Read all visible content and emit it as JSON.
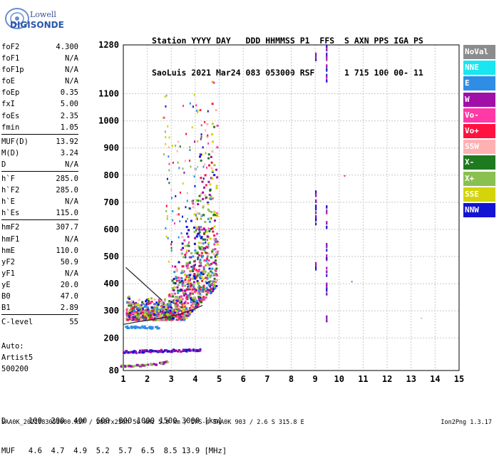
{
  "logo": {
    "line1": "Lowell",
    "line2": "DIGISONDE"
  },
  "header": {
    "line1": "Station YYYY DAY   DDD HHMMSS P1  FFS  S AXN PPS IGA PS",
    "line2": "SaoLuis 2021 Mar24 083 053000 RSF      1 715 100 00- 11"
  },
  "params": [
    {
      "name": "foF2",
      "value": "4.300"
    },
    {
      "name": "foF1",
      "value": "N/A"
    },
    {
      "name": "foF1p",
      "value": "N/A"
    },
    {
      "name": "foE",
      "value": "N/A"
    },
    {
      "name": "foEp",
      "value": "0.35"
    },
    {
      "name": "fxI",
      "value": "5.00"
    },
    {
      "name": "foEs",
      "value": "2.35"
    },
    {
      "name": "fmin",
      "value": "1.05"
    },
    {
      "name": "MUF(D)",
      "value": "13.92"
    },
    {
      "name": "M(D)",
      "value": "3.24"
    },
    {
      "name": "D",
      "value": "N/A"
    },
    {
      "name": "h`F",
      "value": "285.0"
    },
    {
      "name": "h`F2",
      "value": "285.0"
    },
    {
      "name": "h`E",
      "value": "N/A"
    },
    {
      "name": "h`Es",
      "value": "115.0"
    },
    {
      "name": "hmF2",
      "value": "307.7"
    },
    {
      "name": "hmF1",
      "value": "N/A"
    },
    {
      "name": "hmE",
      "value": "110.0"
    },
    {
      "name": "yF2",
      "value": "50.9"
    },
    {
      "name": "yF1",
      "value": "N/A"
    },
    {
      "name": "yE",
      "value": "20.0"
    },
    {
      "name": "B0",
      "value": "47.0"
    },
    {
      "name": "B1",
      "value": "2.89"
    },
    {
      "name": "C-level",
      "value": "55"
    }
  ],
  "auto": {
    "line1": "Auto:",
    "line2": "Artist5",
    "line3": "500200"
  },
  "legend": [
    {
      "label": "NoVal",
      "color": "#8c8c8c"
    },
    {
      "label": "NNE",
      "color": "#19e6f0"
    },
    {
      "label": "E",
      "color": "#2f8de6"
    },
    {
      "label": "W",
      "color": "#a010a8"
    },
    {
      "label": "Vo-",
      "color": "#ff3aa6"
    },
    {
      "label": "Vo+",
      "color": "#ff1240"
    },
    {
      "label": "SSW",
      "color": "#ffb1b1"
    },
    {
      "label": "X-",
      "color": "#1f7a1f"
    },
    {
      "label": "X+",
      "color": "#8ac050"
    },
    {
      "label": "SSE",
      "color": "#d4d40a"
    },
    {
      "label": "NNW",
      "color": "#1414d4"
    }
  ],
  "bottom": {
    "line1": "D     100  200  400  600  800 1000 1500 3000 [km]",
    "line2": "MUF   4.6  4.7  4.9  5.2  5.7  6.5  8.5 13.9 [MHz]"
  },
  "footer": {
    "left": "SAA0K_2021083053000.RSF / 280fx256h 50 kHz 5.0 km / DPS-4 SAA0K 903 / 2.6 S 315.8 E",
    "right": "Ion2Png 1.3.17"
  },
  "chart_data": {
    "type": "scatter",
    "x_ticks": [
      1,
      2,
      3,
      4,
      5,
      6,
      7,
      8,
      9,
      10,
      11,
      12,
      13,
      14,
      15
    ],
    "y_ticks": [
      80,
      200,
      300,
      400,
      500,
      600,
      700,
      800,
      900,
      1000,
      1100,
      1280
    ],
    "xlim": [
      1,
      15
    ],
    "ylim": [
      80,
      1280
    ],
    "grid": true,
    "layers": [
      {
        "name": "F-layer trace",
        "x": [
          1.15,
          1.3,
          1.5,
          1.7,
          1.9,
          2.1,
          2.3,
          2.5,
          2.7,
          2.9,
          3.1,
          3.3,
          3.5,
          3.7,
          3.9,
          4.1,
          4.3,
          4.5,
          4.7
        ],
        "y": [
          300,
          298,
          296,
          294,
          292,
          290,
          288,
          286,
          286,
          286,
          286,
          287,
          288,
          290,
          293,
          298,
          310,
          340,
          420
        ]
      },
      {
        "name": "Es trace",
        "x": [
          1.1,
          1.4,
          1.7,
          2.0,
          2.3,
          2.6,
          2.9,
          3.2,
          3.5,
          3.8,
          4.1
        ],
        "y": [
          152,
          152,
          154,
          155,
          156,
          156,
          156,
          157,
          157,
          158,
          158
        ]
      },
      {
        "name": "E trace",
        "x": [
          1.0,
          1.3,
          1.6,
          1.9,
          2.2,
          2.5,
          2.7
        ],
        "y": [
          100,
          101,
          102,
          104,
          106,
          110,
          115
        ]
      },
      {
        "name": "Low band",
        "x": [
          1.2,
          1.5,
          1.8,
          2.1,
          2.3
        ],
        "y": [
          244,
          244,
          243,
          242,
          242
        ]
      }
    ],
    "spikes": [
      {
        "x": 9.0,
        "y": [
          470,
          640,
          650,
          680,
          700,
          730,
          1240
        ]
      },
      {
        "x": 9.45,
        "y": [
          270,
          380,
          400,
          450,
          500,
          540,
          620,
          680,
          1160,
          1200,
          1240,
          1270
        ]
      }
    ],
    "isolated": [
      {
        "x": 10.2,
        "y": 800
      },
      {
        "x": 10.5,
        "y": 410
      },
      {
        "x": 13.4,
        "y": 275
      }
    ],
    "profile_curve": {
      "x": [
        1.0,
        1.5,
        2.0,
        2.5,
        3.0,
        3.5,
        4.0,
        4.3
      ],
      "y": [
        250,
        258,
        265,
        272,
        280,
        292,
        308,
        320
      ]
    },
    "profile_curve2": {
      "x": [
        1.1,
        1.6,
        2.1,
        2.6
      ],
      "y": [
        460,
        420,
        380,
        340
      ]
    }
  }
}
